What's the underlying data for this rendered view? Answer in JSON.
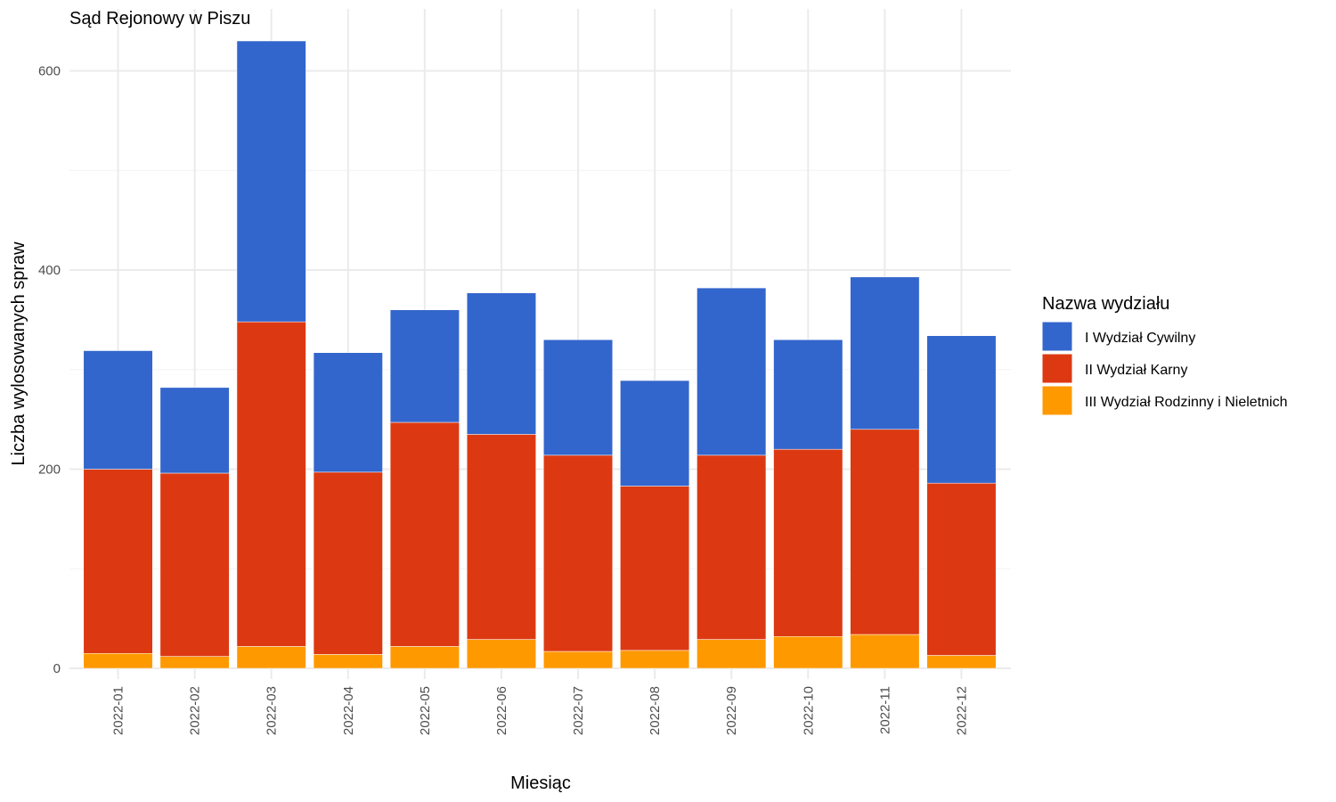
{
  "chart_data": {
    "type": "bar",
    "stacked": true,
    "title": "Sąd Rejonowy w Piszu",
    "xlabel": "Miesiąc",
    "ylabel": "Liczba wylosowanych spraw",
    "ylim": [
      0,
      650
    ],
    "yticks": [
      0,
      200,
      400,
      600
    ],
    "grid": true,
    "legend_position": "right",
    "legend_title": "Nazwa wydziału",
    "categories": [
      "2022-01",
      "2022-02",
      "2022-03",
      "2022-04",
      "2022-05",
      "2022-06",
      "2022-07",
      "2022-08",
      "2022-09",
      "2022-10",
      "2022-11",
      "2022-12"
    ],
    "series": [
      {
        "name": "III Wydział Rodzinny i Nieletnich",
        "color": "#FF9900",
        "values": [
          15,
          12,
          22,
          14,
          22,
          29,
          17,
          18,
          29,
          32,
          34,
          13
        ]
      },
      {
        "name": "II Wydział Karny",
        "color": "#DC3912",
        "values": [
          185,
          184,
          326,
          183,
          225,
          206,
          197,
          165,
          185,
          188,
          206,
          173
        ]
      },
      {
        "name": "I Wydział Cywilny",
        "color": "#3366CC",
        "values": [
          119,
          86,
          282,
          120,
          113,
          142,
          116,
          106,
          168,
          110,
          153,
          148
        ]
      }
    ],
    "legend_order": [
      "I Wydział Cywilny",
      "II Wydział Karny",
      "III Wydział Rodzinny i Nieletnich"
    ]
  }
}
